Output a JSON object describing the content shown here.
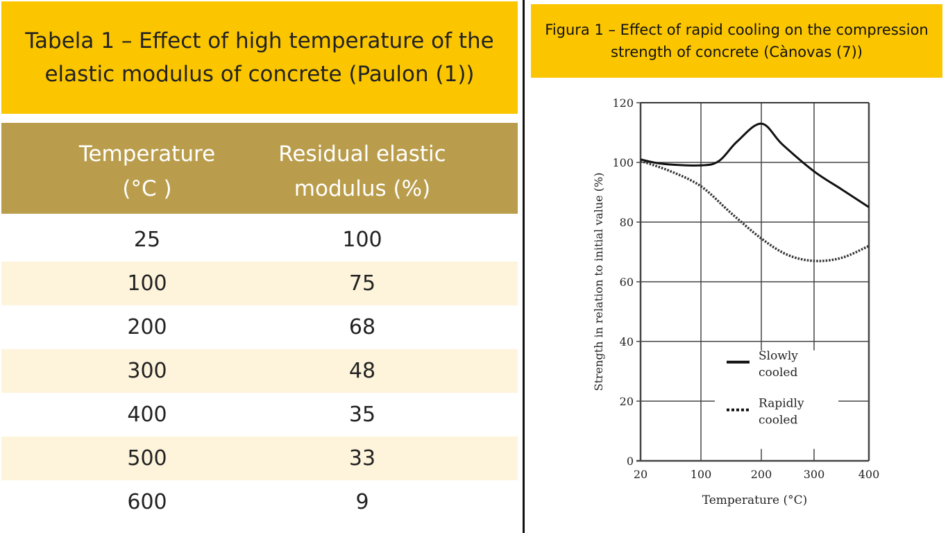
{
  "table": {
    "title": "Tabela 1 – Effect of high temperature of the elastic modulus of concrete (Paulon (1))",
    "headers": [
      "Temperature (°C )",
      "Residual elastic modulus (%)"
    ],
    "rows": [
      [
        "25",
        "100"
      ],
      [
        "100",
        "75"
      ],
      [
        "200",
        "68"
      ],
      [
        "300",
        "48"
      ],
      [
        "400",
        "35"
      ],
      [
        "500",
        "33"
      ],
      [
        "600",
        "9"
      ]
    ]
  },
  "figure": {
    "title": "Figura 1 –  Effect of rapid cooling on the compression strength of concrete (Cànovas (7))"
  },
  "chart_data": [
    {
      "type": "table",
      "title": "Tabela 1 – Effect of high temperature of the elastic modulus of concrete (Paulon (1))",
      "columns": [
        "Temperature (°C )",
        "Residual elastic modulus (%)"
      ],
      "values": [
        [
          25,
          100
        ],
        [
          100,
          75
        ],
        [
          200,
          68
        ],
        [
          300,
          48
        ],
        [
          400,
          35
        ],
        [
          500,
          33
        ],
        [
          600,
          9
        ]
      ]
    },
    {
      "type": "line",
      "title": "Figura 1 –  Effect of rapid cooling on the compression strength of concrete (Cànovas (7))",
      "xlabel": "Temperature (°C)",
      "ylabel": "Strength in relation to initial value (%)",
      "x_ticks": [
        20,
        100,
        200,
        300,
        400
      ],
      "y_ticks": [
        0,
        20,
        40,
        60,
        80,
        100,
        120
      ],
      "xlim": [
        20,
        400
      ],
      "ylim": [
        0,
        120
      ],
      "grid": true,
      "legend": "center-bottom",
      "series": [
        {
          "name": "Slowly cooled",
          "style": "solid",
          "color": "#111111",
          "x": [
            20,
            50,
            100,
            130,
            160,
            200,
            240,
            300,
            350,
            400
          ],
          "y": [
            101,
            99.5,
            99,
            100.5,
            107,
            113,
            106,
            97,
            91,
            85
          ]
        },
        {
          "name": "Rapidly cooled",
          "style": "dotted",
          "color": "#333333",
          "x": [
            20,
            60,
            100,
            150,
            200,
            250,
            300,
            350,
            400
          ],
          "y": [
            100.5,
            97,
            92,
            83,
            74.5,
            69,
            67,
            68,
            72
          ]
        }
      ]
    }
  ]
}
